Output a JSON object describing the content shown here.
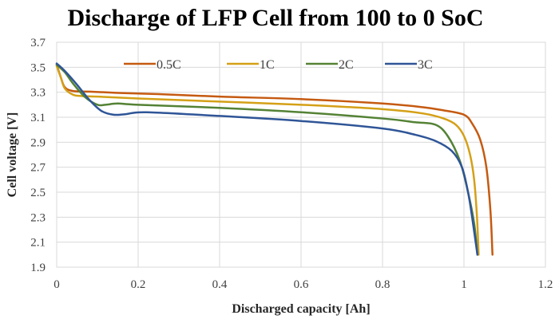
{
  "chart_data": {
    "type": "line",
    "title": "Discharge of LFP Cell from 100 to 0 SoC",
    "xlabel": "Discharged capacity [Ah]",
    "ylabel": "Cell voltage [V]",
    "xlim": [
      0,
      1.2
    ],
    "ylim": [
      1.9,
      3.7
    ],
    "xticks": [
      "0",
      "0.2",
      "0.4",
      "0.6",
      "0.8",
      "1",
      "1.2"
    ],
    "xtick_values": [
      0,
      0.2,
      0.4,
      0.6,
      0.8,
      1.0,
      1.2
    ],
    "yticks": [
      "1.9",
      "2.1",
      "2.3",
      "2.5",
      "2.7",
      "2.9",
      "3.1",
      "3.3",
      "3.5",
      "3.7"
    ],
    "ytick_values": [
      1.9,
      2.1,
      2.3,
      2.5,
      2.7,
      2.9,
      3.1,
      3.3,
      3.5,
      3.7
    ],
    "grid": true,
    "legend_position": "top",
    "series": [
      {
        "name": "0.5C",
        "color": "#c55a11",
        "x": [
          0,
          0.01,
          0.02,
          0.04,
          0.08,
          0.15,
          0.25,
          0.4,
          0.6,
          0.8,
          0.9,
          0.95,
          1.0,
          1.02,
          1.04,
          1.055,
          1.065,
          1.07
        ],
        "y": [
          3.52,
          3.42,
          3.34,
          3.31,
          3.305,
          3.295,
          3.285,
          3.265,
          3.245,
          3.21,
          3.18,
          3.155,
          3.12,
          3.05,
          2.92,
          2.7,
          2.35,
          2.0
        ]
      },
      {
        "name": "1C",
        "color": "#d4a017",
        "x": [
          0,
          0.01,
          0.02,
          0.04,
          0.06,
          0.1,
          0.2,
          0.4,
          0.6,
          0.8,
          0.9,
          0.95,
          0.98,
          1.0,
          1.015,
          1.025,
          1.032,
          1.036
        ],
        "y": [
          3.51,
          3.42,
          3.33,
          3.28,
          3.27,
          3.265,
          3.25,
          3.225,
          3.2,
          3.165,
          3.13,
          3.09,
          3.04,
          2.95,
          2.8,
          2.6,
          2.3,
          2.0
        ]
      },
      {
        "name": "2C",
        "color": "#548235",
        "x": [
          0,
          0.02,
          0.04,
          0.07,
          0.1,
          0.12,
          0.15,
          0.2,
          0.4,
          0.6,
          0.8,
          0.88,
          0.93,
          0.96,
          0.99,
          1.01,
          1.025,
          1.033
        ],
        "y": [
          3.52,
          3.46,
          3.37,
          3.26,
          3.2,
          3.2,
          3.21,
          3.2,
          3.175,
          3.14,
          3.09,
          3.06,
          3.04,
          2.95,
          2.75,
          2.5,
          2.25,
          2.0
        ]
      },
      {
        "name": "3C",
        "color": "#2f5597",
        "x": [
          0,
          0.02,
          0.05,
          0.08,
          0.11,
          0.14,
          0.17,
          0.22,
          0.4,
          0.6,
          0.8,
          0.88,
          0.93,
          0.97,
          0.995,
          1.01,
          1.02,
          1.033
        ],
        "y": [
          3.53,
          3.47,
          3.36,
          3.24,
          3.15,
          3.12,
          3.125,
          3.14,
          3.11,
          3.07,
          3.01,
          2.96,
          2.91,
          2.83,
          2.7,
          2.5,
          2.3,
          2.0
        ]
      }
    ]
  }
}
